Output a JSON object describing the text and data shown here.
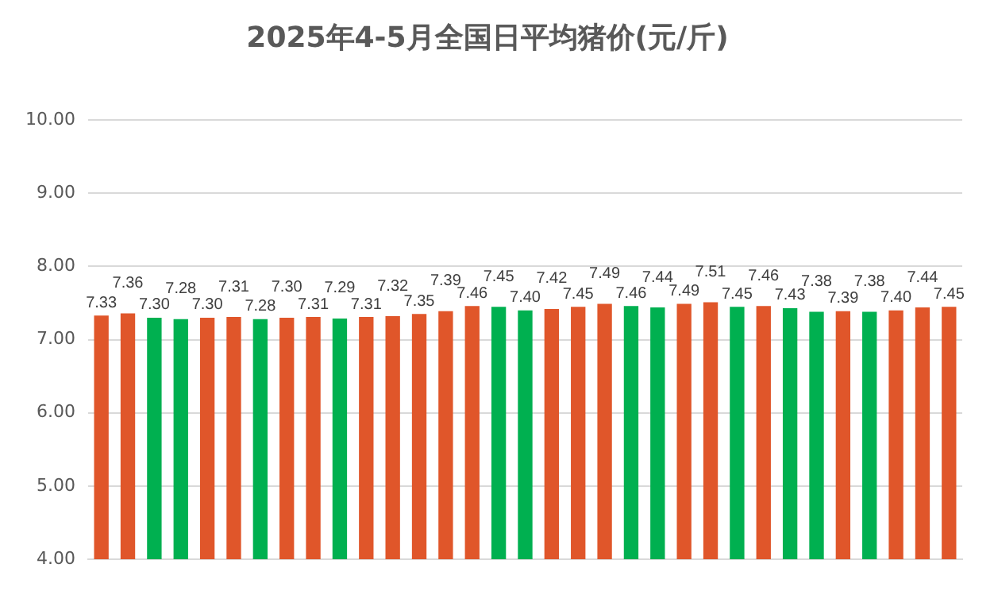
{
  "chart_data": {
    "type": "bar",
    "title": "2025年4-5月全国日平均猪价(元/斤)",
    "categories": [
      null,
      null,
      null,
      null,
      null,
      null,
      null,
      null,
      null,
      null,
      null,
      null,
      null,
      null,
      null,
      null,
      null,
      null,
      null,
      null,
      null,
      null,
      null,
      null,
      null,
      null,
      null,
      null,
      null,
      null,
      null,
      null,
      null
    ],
    "values": [
      7.33,
      7.36,
      7.3,
      7.28,
      7.3,
      7.31,
      7.28,
      7.3,
      7.31,
      7.29,
      7.31,
      7.32,
      7.35,
      7.39,
      7.46,
      7.45,
      7.4,
      7.42,
      7.45,
      7.49,
      7.46,
      7.44,
      7.49,
      7.51,
      7.45,
      7.46,
      7.43,
      7.38,
      7.39,
      7.38,
      7.4,
      7.44,
      7.45
    ],
    "value_labels": [
      "7.33",
      "7.36",
      "7.30",
      "7.28",
      "7.30",
      "7.31",
      "7.28",
      "7.30",
      "7.31",
      "7.29",
      "7.31",
      "7.32",
      "7.35",
      "7.39",
      "7.46",
      "7.45",
      "7.40",
      "7.42",
      "7.45",
      "7.49",
      "7.46",
      "7.44",
      "7.49",
      "7.51",
      "7.45",
      "7.46",
      "7.43",
      "7.38",
      "7.39",
      "7.38",
      "7.40",
      "7.44",
      "7.45"
    ],
    "colors": [
      "#e0562a",
      "#e0562a",
      "#00b050",
      "#00b050",
      "#e0562a",
      "#e0562a",
      "#00b050",
      "#e0562a",
      "#e0562a",
      "#00b050",
      "#e0562a",
      "#e0562a",
      "#e0562a",
      "#e0562a",
      "#e0562a",
      "#00b050",
      "#00b050",
      "#e0562a",
      "#e0562a",
      "#e0562a",
      "#00b050",
      "#00b050",
      "#e0562a",
      "#e0562a",
      "#00b050",
      "#e0562a",
      "#00b050",
      "#00b050",
      "#e0562a",
      "#00b050",
      "#e0562a",
      "#e0562a",
      "#e0562a"
    ],
    "ylim": [
      4,
      10
    ],
    "yticks": [
      {
        "value": 4,
        "label": "4.00"
      },
      {
        "value": 5,
        "label": "5.00"
      },
      {
        "value": 6,
        "label": "6.00"
      },
      {
        "value": 7,
        "label": "7.00"
      },
      {
        "value": 8,
        "label": "8.00"
      },
      {
        "value": 9,
        "label": "9.00"
      },
      {
        "value": 10,
        "label": "10.00"
      }
    ],
    "grid": "y",
    "legend": false,
    "tick_labels": "y"
  }
}
